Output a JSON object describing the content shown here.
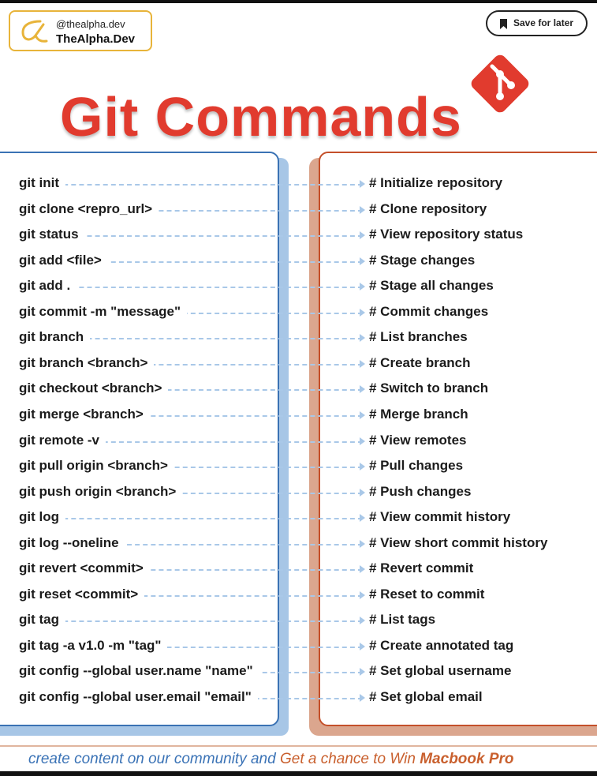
{
  "brand": {
    "handle": "@thealpha.dev",
    "name": "TheAlpha.Dev",
    "logo_icon": "alpha-icon",
    "logo_color": "#e8b43a"
  },
  "save_button": {
    "label": "Save for later",
    "icon": "bookmark-icon"
  },
  "title": "Git Commands",
  "title_color": "#e13b2e",
  "git_logo": {
    "icon": "git-icon",
    "color": "#e13b2e"
  },
  "commands": [
    {
      "cmd": "git init",
      "desc": "# Initialize repository"
    },
    {
      "cmd": "git clone <repro_url>",
      "desc": "# Clone repository"
    },
    {
      "cmd": "git status",
      "desc": "# View repository status"
    },
    {
      "cmd": "git add <file>",
      "desc": "# Stage changes"
    },
    {
      "cmd": "git add .",
      "desc": "# Stage all changes"
    },
    {
      "cmd": "git commit -m \"message\"",
      "desc": "# Commit changes"
    },
    {
      "cmd": "git branch",
      "desc": "# List branches"
    },
    {
      "cmd": "git branch <branch>",
      "desc": "# Create branch"
    },
    {
      "cmd": "git checkout <branch>",
      "desc": "# Switch to branch"
    },
    {
      "cmd": "git merge <branch>",
      "desc": "# Merge branch"
    },
    {
      "cmd": "git remote -v",
      "desc": "# View remotes"
    },
    {
      "cmd": "git pull origin <branch>",
      "desc": "# Pull changes"
    },
    {
      "cmd": "git push origin <branch>",
      "desc": "# Push changes"
    },
    {
      "cmd": "git log",
      "desc": "# View commit history"
    },
    {
      "cmd": "git log --oneline",
      "desc": "# View short commit history"
    },
    {
      "cmd": "git revert <commit>",
      "desc": "# Revert commit"
    },
    {
      "cmd": "git reset <commit>",
      "desc": "# Reset to commit"
    },
    {
      "cmd": "git tag",
      "desc": "# List tags"
    },
    {
      "cmd": "git tag -a v1.0 -m \"tag\"",
      "desc": "# Create annotated tag"
    },
    {
      "cmd": "git config --global user.name \"name\"",
      "desc": "# Set global username"
    },
    {
      "cmd": "git config --global user.email \"email\"",
      "desc": "# Set global email"
    }
  ],
  "footer": {
    "part1": "create content on our community and ",
    "part2": "Get a chance to Win ",
    "part3": "Macbook Pro"
  },
  "colors": {
    "left_panel_border": "#3a72b4",
    "right_panel_border": "#c4502a",
    "connector": "#a9c8e8"
  }
}
